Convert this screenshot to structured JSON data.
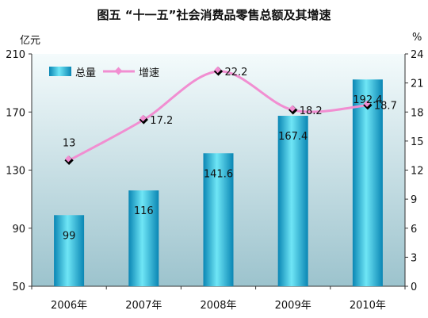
{
  "title": "图五      “十一五”社会消费品零售总额及其增速",
  "left_unit": "亿元",
  "right_unit": "%",
  "legend": {
    "bar_label": "总量",
    "line_label": "增速"
  },
  "colors": {
    "bar_top": "#6fe6f6",
    "bar_mid": "#19bde0",
    "bar_bottom": "#0a86b4",
    "line": "#f18ed1",
    "marker": "#000000",
    "bg_top": "#f4fbfc",
    "bg_bottom": "#9cc3cd"
  },
  "chart_data": {
    "type": "bar",
    "categories": [
      "2006年",
      "2007年",
      "2008年",
      "2009年",
      "2010年"
    ],
    "series": [
      {
        "name": "总量",
        "type": "bar",
        "axis": "left",
        "values": [
          99,
          116,
          141.6,
          167.4,
          192.4
        ]
      },
      {
        "name": "增速",
        "type": "line",
        "axis": "right",
        "values": [
          13,
          17.2,
          22.2,
          18.2,
          18.7
        ]
      }
    ],
    "y_left": {
      "ylim": [
        50,
        210
      ],
      "ticks": [
        50,
        90,
        130,
        170,
        210
      ]
    },
    "y_right": {
      "ylim": [
        0,
        24
      ],
      "ticks": [
        0,
        3,
        6,
        9,
        12,
        15,
        18,
        21,
        24
      ]
    },
    "bar_labels": [
      "99",
      "116",
      "141.6",
      "167.4",
      "192.4"
    ],
    "line_labels": [
      "13",
      "17.2",
      "22.2",
      "18.2",
      "18.7"
    ],
    "legend_position": "top-left",
    "grid": false
  }
}
